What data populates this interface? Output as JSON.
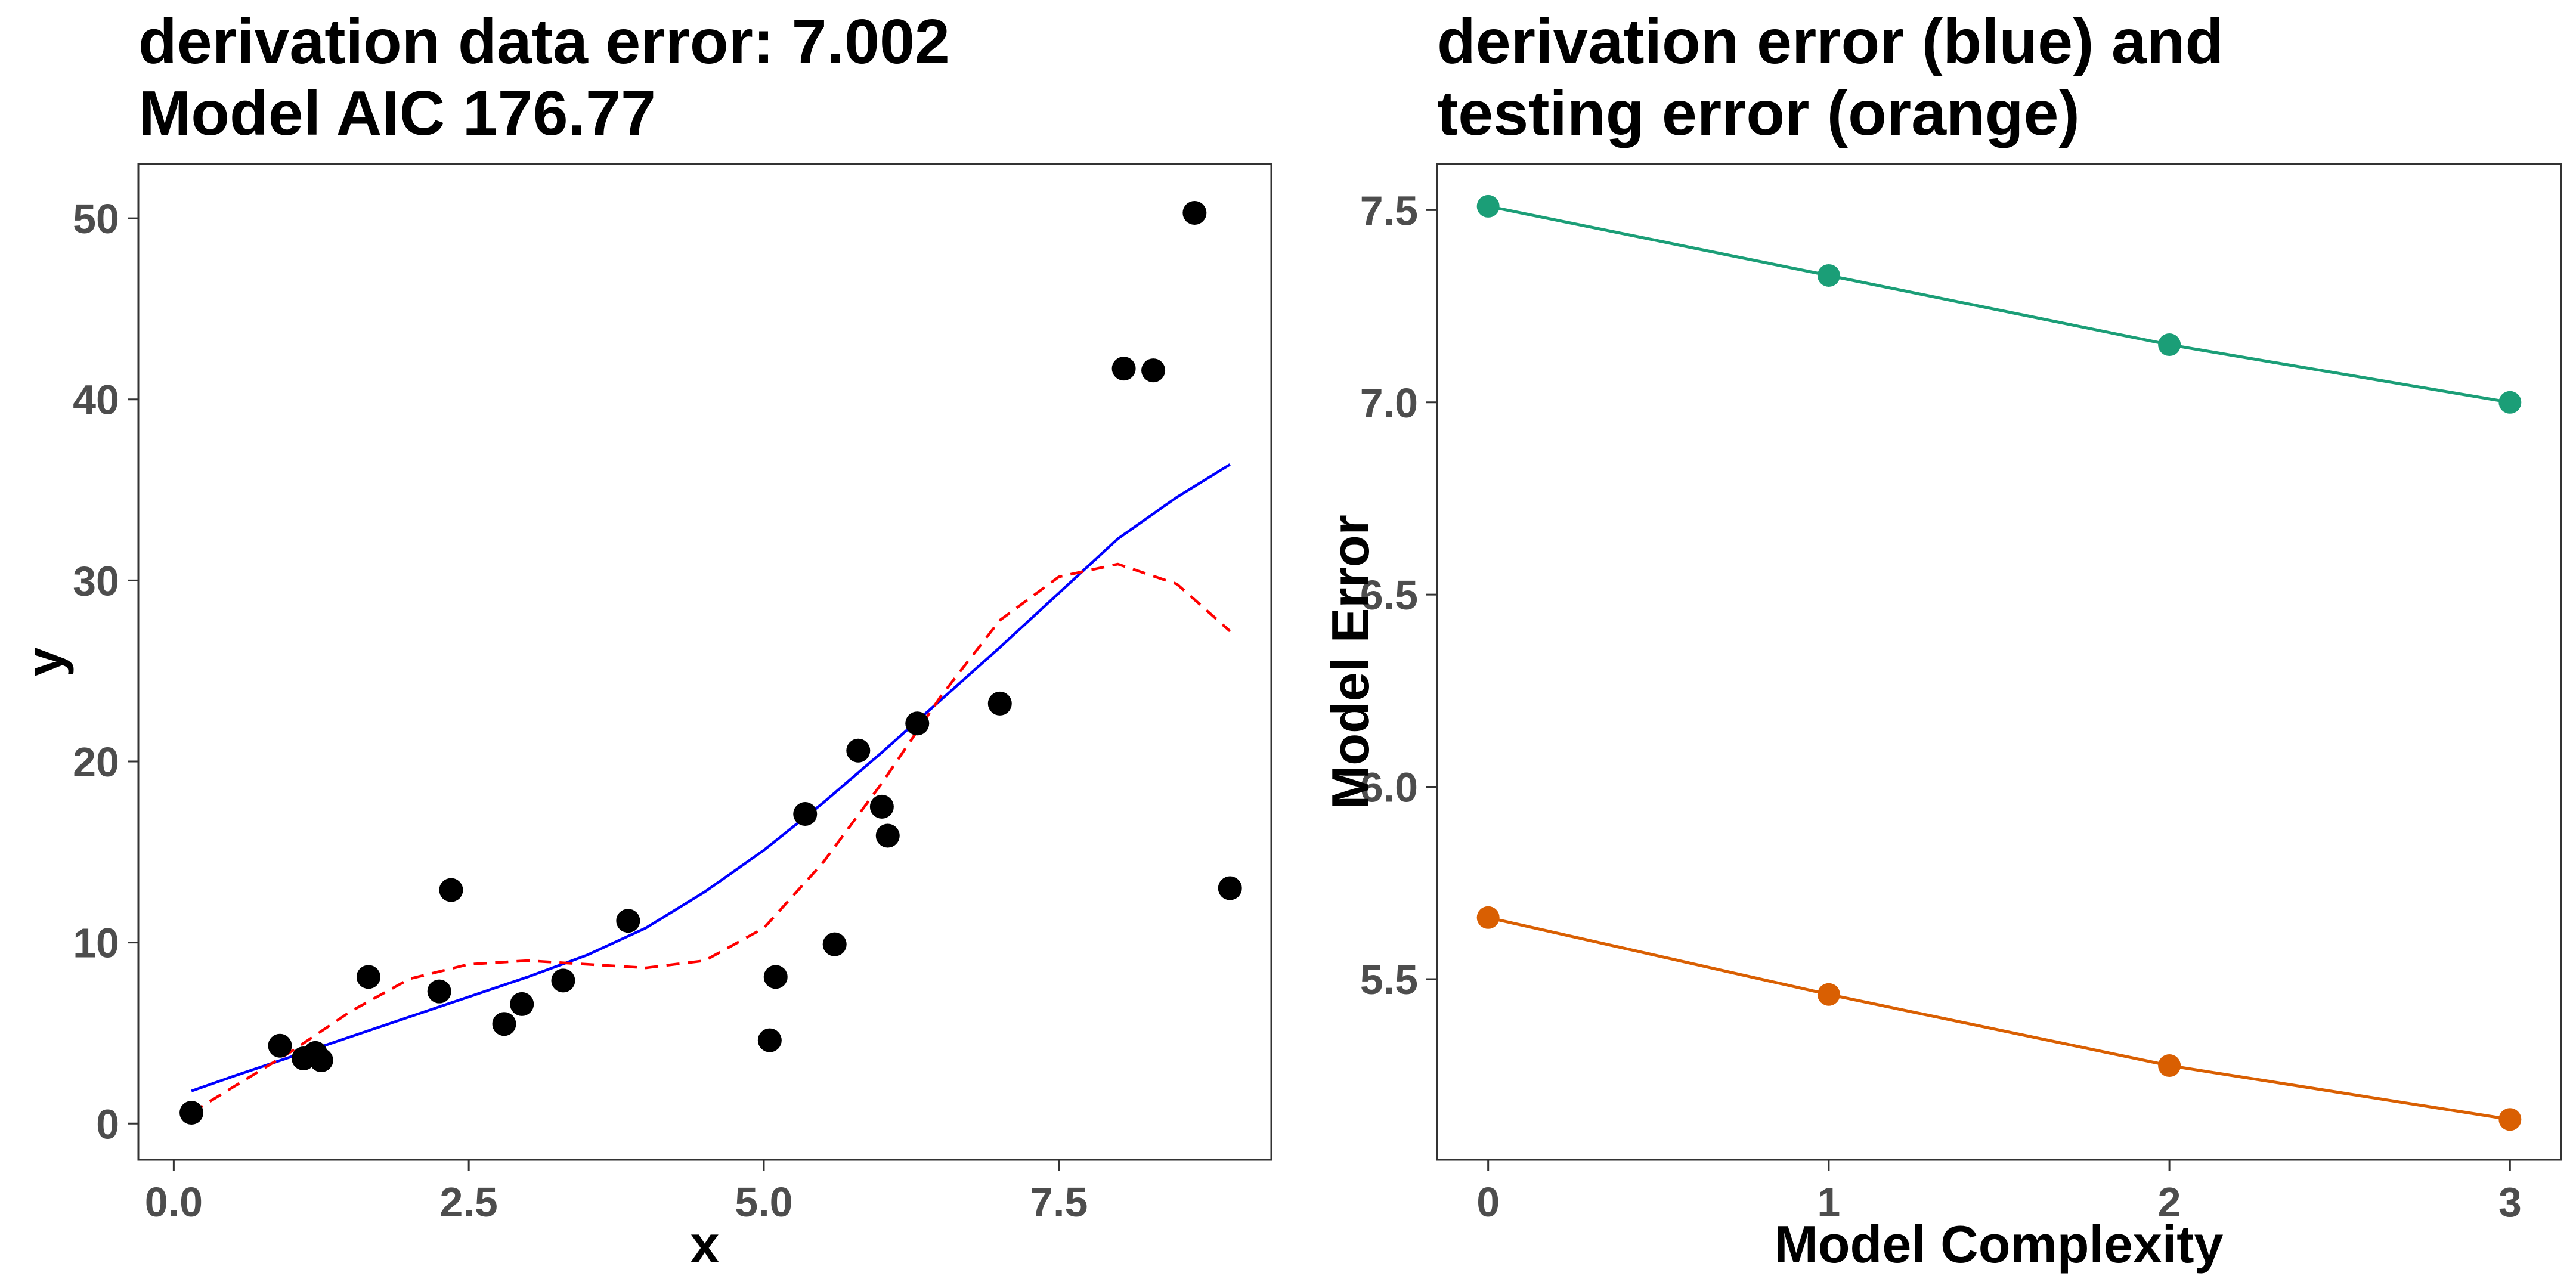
{
  "chart_data": [
    {
      "type": "scatter",
      "title": "derivation data error: 7.002\nModel AIC 176.77",
      "title_lines": [
        "derivation data error: 7.002",
        "Model AIC 176.77"
      ],
      "xlabel": "x",
      "ylabel": "y",
      "xlim": [
        -0.3,
        9.3
      ],
      "ylim": [
        -2,
        53
      ],
      "xticks": [
        0,
        2.5,
        5,
        7.5
      ],
      "xtick_labels": [
        "0.0",
        "2.5",
        "5.0",
        "7.5"
      ],
      "yticks": [
        0,
        10,
        20,
        30,
        40,
        50
      ],
      "ytick_labels": [
        "0",
        "10",
        "20",
        "30",
        "40",
        "50"
      ],
      "grid": false,
      "points": {
        "x": [
          0.15,
          0.9,
          1.1,
          1.2,
          1.25,
          1.65,
          2.25,
          2.35,
          2.8,
          2.95,
          3.3,
          3.85,
          5.05,
          5.1,
          5.35,
          5.6,
          5.8,
          6.0,
          6.05,
          6.3,
          7.0,
          8.05,
          8.3,
          8.65,
          8.95
        ],
        "y": [
          0.6,
          4.3,
          3.6,
          3.9,
          3.5,
          8.1,
          7.3,
          12.9,
          5.5,
          6.6,
          7.9,
          11.2,
          4.6,
          8.1,
          17.1,
          9.9,
          20.6,
          17.5,
          15.9,
          22.1,
          23.2,
          41.7,
          41.6,
          50.3,
          13.0
        ],
        "color": "#000000"
      },
      "fits": [
        {
          "style": "solid",
          "color": "#0000ff",
          "x": [
            0.15,
            0.5,
            1.0,
            1.5,
            2.0,
            2.5,
            3.0,
            3.5,
            4.0,
            4.5,
            5.0,
            5.5,
            6.0,
            6.5,
            7.0,
            7.5,
            8.0,
            8.5,
            8.95
          ],
          "y": [
            1.8,
            2.6,
            3.7,
            4.8,
            5.9,
            7.0,
            8.1,
            9.3,
            10.8,
            12.8,
            15.1,
            17.7,
            20.5,
            23.4,
            26.3,
            29.3,
            32.3,
            34.6,
            36.4
          ]
        },
        {
          "style": "dashed",
          "color": "#ff0000",
          "x": [
            0.15,
            0.5,
            1.0,
            1.5,
            2.0,
            2.5,
            3.0,
            3.5,
            4.0,
            4.5,
            5.0,
            5.5,
            6.0,
            6.5,
            7.0,
            7.5,
            8.0,
            8.5,
            8.95
          ],
          "y": [
            0.6,
            2.0,
            4.0,
            6.2,
            8.0,
            8.8,
            9.0,
            8.8,
            8.6,
            9.0,
            10.8,
            14.4,
            18.8,
            23.6,
            27.8,
            30.2,
            30.9,
            29.8,
            27.2
          ]
        }
      ]
    },
    {
      "type": "line",
      "title": "derivation error (blue) and\ntesting error (orange)",
      "title_lines": [
        "derivation error (blue) and",
        "testing error (orange)"
      ],
      "xlabel": "Model Complexity",
      "ylabel": "Model Error",
      "x": [
        0,
        1,
        2,
        3
      ],
      "xlim": [
        -0.15,
        3.15
      ],
      "ylim": [
        5.03,
        7.62
      ],
      "xticks": [
        0,
        1,
        2,
        3
      ],
      "xtick_labels": [
        "0",
        "1",
        "2",
        "3"
      ],
      "yticks": [
        5.5,
        6.0,
        6.5,
        7.0,
        7.5
      ],
      "ytick_labels": [
        "5.5",
        "6.0",
        "6.5",
        "7.0",
        "7.5"
      ],
      "grid": false,
      "series": [
        {
          "values": [
            7.51,
            7.33,
            7.15,
            7.0
          ],
          "color": "#1b9e77"
        },
        {
          "values": [
            5.66,
            5.46,
            5.275,
            5.135
          ],
          "color": "#d95f02"
        }
      ]
    }
  ],
  "colors": {
    "frame": "#333333",
    "tick_text": "#4d4d4d",
    "text": "#000000",
    "background": "#ffffff"
  }
}
